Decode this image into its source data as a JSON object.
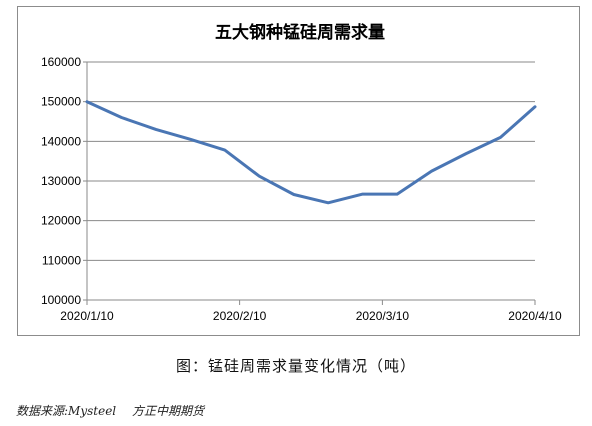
{
  "chart_data": {
    "type": "line",
    "title": "五大钢种锰硅周需求量",
    "xlabel": "",
    "ylabel": "",
    "x_tick_labels": [
      "2020/1/10",
      "2020/2/10",
      "2020/3/10",
      "2020/4/10"
    ],
    "y_tick_labels": [
      "100000",
      "110000",
      "120000",
      "130000",
      "140000",
      "150000",
      "160000"
    ],
    "ylim": [
      100000,
      160000
    ],
    "grid": true,
    "legend": "none",
    "series": [
      {
        "color": "#4a76b4",
        "x": [
          "2020/1/10",
          "2020/1/17",
          "2020/1/24",
          "2020/1/31",
          "2020/2/7",
          "2020/2/14",
          "2020/2/21",
          "2020/2/28",
          "2020/3/6",
          "2020/3/13",
          "2020/3/20",
          "2020/3/27",
          "2020/4/3",
          "2020/4/10"
        ],
        "values": [
          150000,
          146000,
          143000,
          140500,
          137800,
          131200,
          126600,
          124500,
          126700,
          126700,
          132500,
          136900,
          141000,
          148700
        ]
      }
    ]
  },
  "caption": "图：锰硅周需求量变化情况（吨）",
  "source": {
    "label": "数据来源:Mysteel",
    "org": "方正中期期货"
  }
}
